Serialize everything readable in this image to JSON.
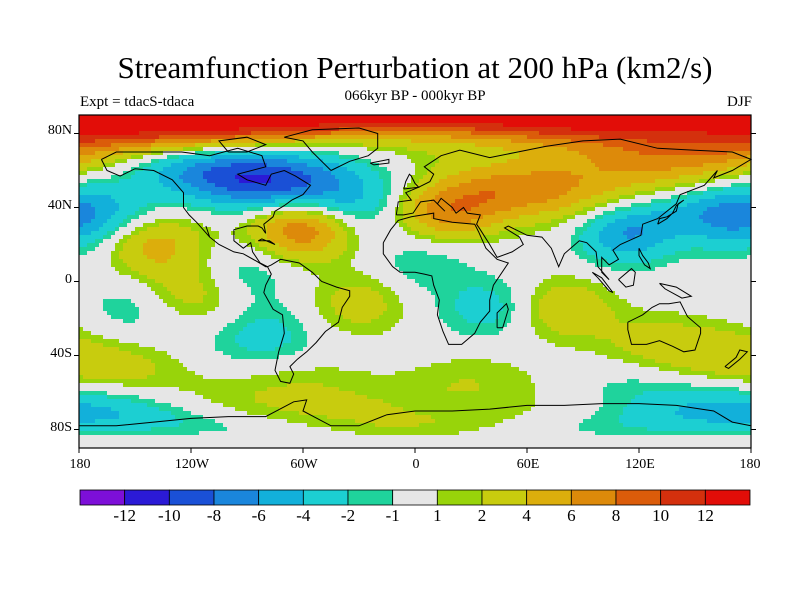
{
  "title": "Streamfunction Perturbation at 200 hPa (km2/s)",
  "subtitle": "066kyr BP - 000kyr BP",
  "left_label": "Expt = tdacS-tdaca",
  "right_label": "DJF",
  "lat_ticks": [
    "80N",
    "40N",
    "0",
    "40S",
    "80S"
  ],
  "lon_ticks": [
    "180",
    "120W",
    "60W",
    "0",
    "60E",
    "120E",
    "180"
  ],
  "colorbar": {
    "labels": [
      "-12",
      "-10",
      "-8",
      "-6",
      "-4",
      "-2",
      "-1",
      "1",
      "2",
      "4",
      "6",
      "8",
      "10",
      "12"
    ],
    "colors": [
      "#7d0fd8",
      "#2b1ad6",
      "#1a50d6",
      "#1a86dc",
      "#12b0da",
      "#1ccfd2",
      "#1fd39c",
      "#e6e6e6",
      "#98d40a",
      "#c8cc0e",
      "#dcae0c",
      "#dd8a0a",
      "#db5c0a",
      "#d4300d",
      "#e20d08"
    ]
  },
  "map": {
    "projection": "cylindrical equidistant",
    "lon_range": [
      -180,
      180
    ],
    "lat_range": [
      -90,
      90
    ],
    "contour_levels": [
      -12,
      -10,
      -8,
      -6,
      -4,
      -2,
      -1,
      1,
      2,
      4,
      6,
      8,
      10,
      12
    ],
    "blobs": [
      {
        "lon": -150,
        "lat": 80,
        "v": 6
      },
      {
        "lon": -30,
        "lat": 82,
        "v": 4
      },
      {
        "lon": 150,
        "lat": 80,
        "v": 6
      },
      {
        "lon": -85,
        "lat": 52,
        "v": -8
      },
      {
        "lon": -110,
        "lat": 65,
        "v": -4
      },
      {
        "lon": -35,
        "lat": 44,
        "v": -7
      },
      {
        "lon": -60,
        "lat": 30,
        "v": 9
      },
      {
        "lon": 18,
        "lat": 40,
        "v": 8
      },
      {
        "lon": 60,
        "lat": 52,
        "v": 4
      },
      {
        "lon": 90,
        "lat": 42,
        "v": 4
      },
      {
        "lon": 112,
        "lat": 28,
        "v": -7
      },
      {
        "lon": 135,
        "lat": 60,
        "v": 4
      },
      {
        "lon": 165,
        "lat": 36,
        "v": -5
      },
      {
        "lon": -170,
        "lat": 35,
        "v": -4
      },
      {
        "lon": -140,
        "lat": 20,
        "v": 5
      },
      {
        "lon": -120,
        "lat": -7,
        "v": 3
      },
      {
        "lon": -90,
        "lat": 5,
        "v": -2
      },
      {
        "lon": -150,
        "lat": -15,
        "v": -2
      },
      {
        "lon": -80,
        "lat": -30,
        "v": -3
      },
      {
        "lon": -30,
        "lat": -12,
        "v": 3
      },
      {
        "lon": 5,
        "lat": 10,
        "v": -2
      },
      {
        "lon": 40,
        "lat": -15,
        "v": -3
      },
      {
        "lon": 80,
        "lat": -15,
        "v": 4
      },
      {
        "lon": 130,
        "lat": -35,
        "v": 3
      },
      {
        "lon": 170,
        "lat": -40,
        "v": 3
      },
      {
        "lon": -150,
        "lat": -48,
        "v": 2
      },
      {
        "lon": -60,
        "lat": -55,
        "v": 2
      },
      {
        "lon": 30,
        "lat": -55,
        "v": 2
      },
      {
        "lon": 120,
        "lat": -55,
        "v": -2
      },
      {
        "lon": -170,
        "lat": -75,
        "v": -3
      },
      {
        "lon": -80,
        "lat": -80,
        "v": 2
      },
      {
        "lon": 90,
        "lat": -80,
        "v": 2
      },
      {
        "lon": 160,
        "lat": -72,
        "v": -3
      }
    ]
  }
}
